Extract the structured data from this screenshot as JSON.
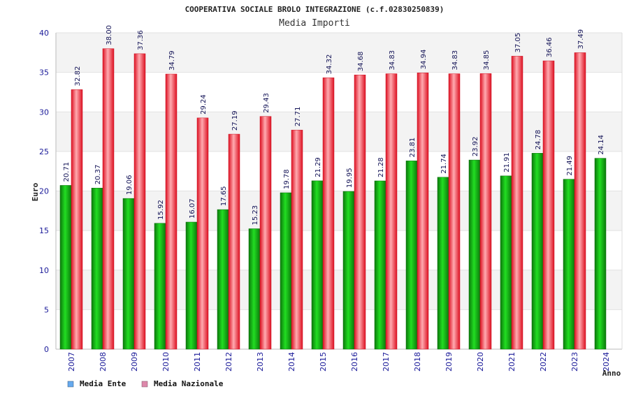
{
  "chart_data": {
    "type": "bar",
    "title": "COOPERATIVA SOCIALE BROLO INTEGRAZIONE (c.f.02830250839)",
    "subtitle": "Media Importi",
    "ylabel": "Euro",
    "xlabel": "Anno",
    "ylim": [
      0,
      40
    ],
    "yticks": [
      0,
      5,
      10,
      15,
      20,
      25,
      30,
      35,
      40
    ],
    "categories": [
      "2007",
      "2008",
      "2009",
      "2010",
      "2011",
      "2012",
      "2013",
      "2014",
      "2015",
      "2016",
      "2017",
      "2018",
      "2019",
      "2020",
      "2021",
      "2022",
      "2023",
      "2024"
    ],
    "series": [
      {
        "name": "Media Ente",
        "legend_color": "#66aaee",
        "bar_color": "#11aa11",
        "values": [
          20.71,
          20.37,
          19.06,
          15.92,
          16.07,
          17.65,
          15.23,
          19.78,
          21.29,
          19.95,
          21.28,
          23.81,
          21.74,
          23.92,
          21.91,
          24.78,
          21.49,
          24.14
        ],
        "labels": [
          "20.71",
          "20.37",
          "19.06",
          "15.92",
          "16.07",
          "17.65",
          "15.23",
          "19.78",
          "21.29",
          "19.95",
          "21.28",
          "23.81",
          "21.74",
          "23.92",
          "21.91",
          "24.78",
          "21.49",
          "24.14"
        ]
      },
      {
        "name": "Media Nazionale",
        "legend_color": "#dd88aa",
        "bar_color": "#ee2233",
        "values": [
          32.82,
          38.0,
          37.36,
          34.79,
          29.24,
          27.19,
          29.43,
          27.71,
          34.32,
          34.68,
          34.83,
          34.94,
          34.83,
          34.85,
          37.05,
          36.46,
          37.49,
          null
        ],
        "labels": [
          "32.82",
          "38.00",
          "37.36",
          "34.79",
          "29.24",
          "27.19",
          "29.43",
          "27.71",
          "34.32",
          "34.68",
          "34.83",
          "34.94",
          "34.83",
          "34.85",
          "37.05",
          "36.46",
          "37.49",
          ""
        ]
      }
    ],
    "grid": true,
    "legend_position": "bottom-left"
  }
}
